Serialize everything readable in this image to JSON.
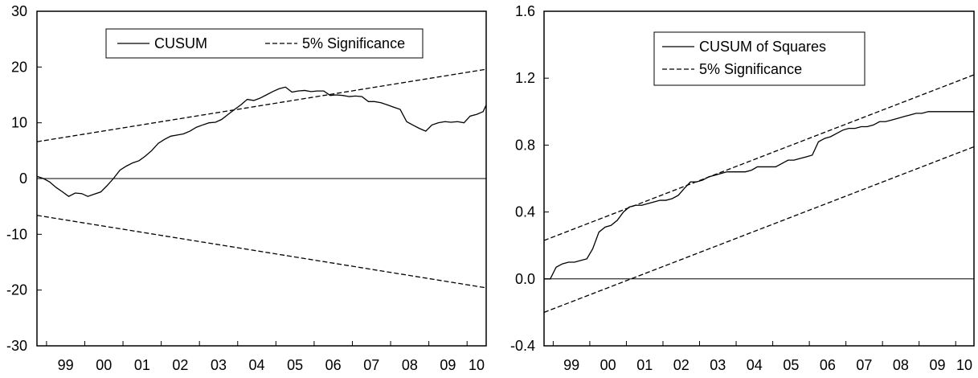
{
  "chart_data": [
    {
      "type": "line",
      "x_tick_labels": [
        "99",
        "00",
        "01",
        "02",
        "03",
        "04",
        "05",
        "06",
        "07",
        "08",
        "09",
        "10"
      ],
      "ylim": [
        -30,
        30
      ],
      "y_ticks": [
        -30,
        -20,
        -10,
        0,
        10,
        20,
        30
      ],
      "x_range": [
        1998.75,
        2010.5
      ],
      "grid": false,
      "zero_line": true,
      "legend_placement": "top-center",
      "series": [
        {
          "name": "CUSUM",
          "style": "solid",
          "color": "#000000",
          "x": [
            1998.75,
            1998.92,
            1999.08,
            1999.25,
            1999.42,
            1999.58,
            1999.75,
            1999.92,
            2000.08,
            2000.25,
            2000.42,
            2000.58,
            2000.75,
            2000.92,
            2001.08,
            2001.25,
            2001.42,
            2001.58,
            2001.75,
            2001.92,
            2002.08,
            2002.25,
            2002.42,
            2002.58,
            2002.75,
            2002.92,
            2003.08,
            2003.25,
            2003.42,
            2003.58,
            2003.75,
            2003.92,
            2004.08,
            2004.25,
            2004.42,
            2004.58,
            2004.75,
            2004.92,
            2005.08,
            2005.25,
            2005.42,
            2005.58,
            2005.75,
            2005.92,
            2006.08,
            2006.25,
            2006.42,
            2006.58,
            2006.75,
            2006.92,
            2007.08,
            2007.25,
            2007.42,
            2007.58,
            2007.75,
            2007.92,
            2008.08,
            2008.25,
            2008.42,
            2008.58,
            2008.75,
            2008.92,
            2009.08,
            2009.25,
            2009.42,
            2009.58,
            2009.75,
            2009.92,
            2010.08,
            2010.25,
            2010.42,
            2010.5
          ],
          "y": [
            0.4,
            0.0,
            -0.6,
            -1.6,
            -2.4,
            -3.2,
            -2.6,
            -2.7,
            -3.2,
            -2.8,
            -2.4,
            -1.3,
            0.0,
            1.5,
            2.2,
            2.8,
            3.2,
            4.0,
            5.0,
            6.3,
            7.0,
            7.6,
            7.8,
            8.0,
            8.5,
            9.2,
            9.6,
            10.0,
            10.1,
            10.6,
            11.5,
            12.4,
            13.2,
            14.2,
            14.0,
            14.4,
            15.0,
            15.6,
            16.1,
            16.4,
            15.5,
            15.7,
            15.8,
            15.6,
            15.7,
            15.7,
            14.9,
            15.0,
            14.9,
            14.7,
            14.8,
            14.7,
            13.8,
            13.8,
            13.6,
            13.2,
            12.8,
            12.4,
            10.2,
            9.6,
            9.0,
            8.5,
            9.6,
            10.0,
            10.2,
            10.1,
            10.2,
            10.0,
            11.2,
            11.5,
            12.0,
            13.2
          ]
        },
        {
          "name": "5% Significance",
          "style": "dashed",
          "color": "#000000",
          "x": [
            1998.75,
            2010.5
          ],
          "y": [
            6.6,
            19.6
          ]
        },
        {
          "name": "",
          "style": "dashed",
          "color": "#000000",
          "x": [
            1998.75,
            2010.5
          ],
          "y": [
            -6.6,
            -19.6
          ]
        }
      ]
    },
    {
      "type": "line",
      "x_tick_labels": [
        "99",
        "00",
        "01",
        "02",
        "03",
        "04",
        "05",
        "06",
        "07",
        "08",
        "09",
        "10"
      ],
      "ylim": [
        -0.4,
        1.6
      ],
      "y_ticks": [
        -0.4,
        0.0,
        0.4,
        0.8,
        1.2,
        1.6
      ],
      "y_tick_labels": [
        "-0.4",
        "0.0",
        "0.4",
        "0.8",
        "1.2",
        "1.6"
      ],
      "x_range": [
        1998.75,
        2010.5
      ],
      "grid": false,
      "zero_line": true,
      "legend_placement": "top-center",
      "series": [
        {
          "name": "CUSUM of Squares",
          "style": "solid",
          "color": "#000000",
          "x": [
            1998.75,
            1998.92,
            1999.08,
            1999.25,
            1999.42,
            1999.58,
            1999.75,
            1999.92,
            2000.08,
            2000.25,
            2000.42,
            2000.58,
            2000.75,
            2000.92,
            2001.08,
            2001.25,
            2001.42,
            2001.58,
            2001.75,
            2001.92,
            2002.08,
            2002.25,
            2002.42,
            2002.58,
            2002.75,
            2002.92,
            2003.08,
            2003.25,
            2003.42,
            2003.58,
            2003.75,
            2003.92,
            2004.08,
            2004.25,
            2004.42,
            2004.58,
            2004.75,
            2004.92,
            2005.08,
            2005.25,
            2005.42,
            2005.58,
            2005.75,
            2005.92,
            2006.08,
            2006.25,
            2006.42,
            2006.58,
            2006.75,
            2006.92,
            2007.08,
            2007.25,
            2007.42,
            2007.58,
            2007.75,
            2007.92,
            2008.08,
            2008.25,
            2008.42,
            2008.58,
            2008.75,
            2008.92,
            2009.08,
            2009.25,
            2009.42,
            2009.58,
            2009.75,
            2009.92,
            2010.08,
            2010.25,
            2010.42,
            2010.5
          ],
          "y": [
            0.0,
            0.0,
            0.07,
            0.09,
            0.1,
            0.1,
            0.11,
            0.12,
            0.18,
            0.28,
            0.31,
            0.32,
            0.35,
            0.4,
            0.43,
            0.44,
            0.44,
            0.45,
            0.46,
            0.47,
            0.47,
            0.48,
            0.5,
            0.54,
            0.58,
            0.58,
            0.59,
            0.61,
            0.62,
            0.63,
            0.64,
            0.64,
            0.64,
            0.64,
            0.65,
            0.67,
            0.67,
            0.67,
            0.67,
            0.69,
            0.71,
            0.71,
            0.72,
            0.73,
            0.74,
            0.82,
            0.84,
            0.85,
            0.87,
            0.89,
            0.9,
            0.9,
            0.91,
            0.91,
            0.92,
            0.94,
            0.94,
            0.95,
            0.96,
            0.97,
            0.98,
            0.99,
            0.99,
            1.0,
            1.0,
            1.0,
            1.0,
            1.0,
            1.0,
            1.0,
            1.0,
            1.0
          ]
        },
        {
          "name": "5% Significance",
          "style": "dashed",
          "color": "#000000",
          "x": [
            1998.75,
            2010.5
          ],
          "y": [
            0.23,
            1.22
          ]
        },
        {
          "name": "",
          "style": "dashed",
          "color": "#000000",
          "x": [
            1998.75,
            2010.5
          ],
          "y": [
            -0.2,
            0.79
          ]
        }
      ]
    }
  ]
}
